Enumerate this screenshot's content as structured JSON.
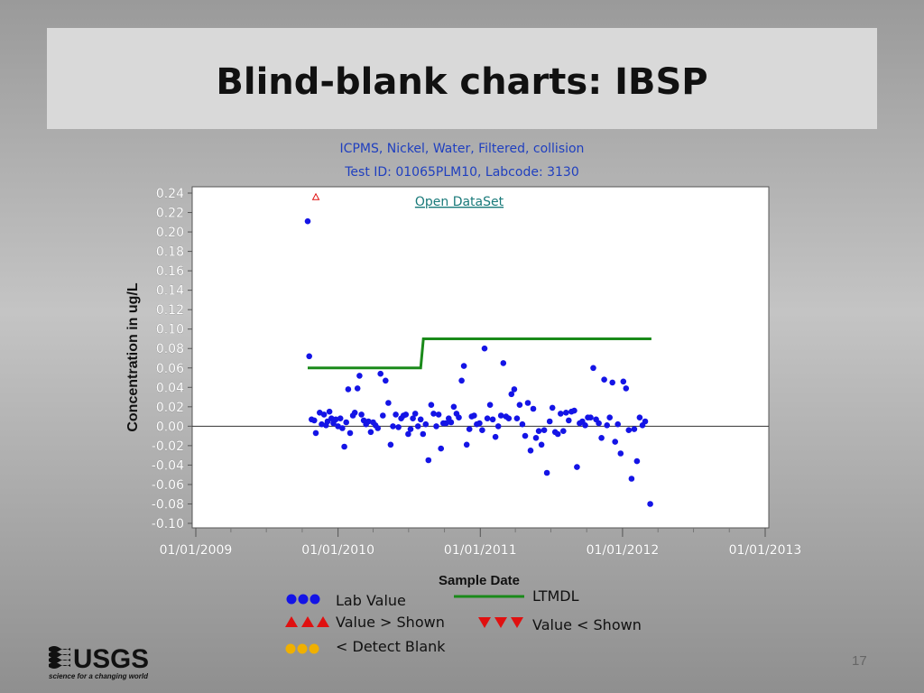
{
  "slide": {
    "title": "Blind-blank charts: IBSP",
    "page_number": "17"
  },
  "logo": {
    "text": "USGS",
    "tagline": "science for a changing world"
  },
  "chart_data": {
    "type": "scatter",
    "subtitle_lines": [
      "ICPMS, Nickel, Water, Filtered, collision",
      "Test ID: 01065PLM10, Labcode: 3130"
    ],
    "link_text": "Open DataSet",
    "xlabel": "Sample Date",
    "ylabel": "Concentration in ug/L",
    "ylim": [
      -0.1,
      0.24
    ],
    "yticks": [
      "0.24",
      "0.22",
      "0.20",
      "0.18",
      "0.16",
      "0.14",
      "0.12",
      "0.10",
      "0.08",
      "0.06",
      "0.04",
      "0.02",
      "0.00",
      "-0.02",
      "-0.04",
      "-0.06",
      "-0.08",
      "-0.10"
    ],
    "xlim": [
      "2009-01-01",
      "2013-01-01"
    ],
    "xticks": [
      "01/01/2009",
      "01/01/2010",
      "01/01/2011",
      "01/01/2012",
      "01/01/2013"
    ],
    "colors": {
      "lab_value": "#1414e6",
      "ltmdl": "#1a8a1a",
      "value_above": "#e01010",
      "value_below": "#e01010",
      "detect_blank": "#f0b000"
    },
    "series": [
      {
        "name": "Lab Value",
        "points": [
          [
            "2009-10-15",
            0.211
          ],
          [
            "2009-10-19",
            0.072
          ],
          [
            "2009-10-25",
            0.007
          ],
          [
            "2009-11-01",
            0.006
          ],
          [
            "2009-11-05",
            -0.007
          ],
          [
            "2009-11-15",
            0.014
          ],
          [
            "2009-11-20",
            0.002
          ],
          [
            "2009-11-26",
            0.012
          ],
          [
            "2009-12-01",
            0.001
          ],
          [
            "2009-12-05",
            0.005
          ],
          [
            "2009-12-10",
            0.015
          ],
          [
            "2009-12-15",
            0.008
          ],
          [
            "2009-12-20",
            0.003
          ],
          [
            "2009-12-26",
            0.007
          ],
          [
            "2010-01-01",
            0.0
          ],
          [
            "2010-01-07",
            0.008
          ],
          [
            "2010-01-12",
            -0.002
          ],
          [
            "2010-01-17",
            -0.021
          ],
          [
            "2010-01-22",
            0.004
          ],
          [
            "2010-01-27",
            0.038
          ],
          [
            "2010-02-01",
            -0.007
          ],
          [
            "2010-02-08",
            0.011
          ],
          [
            "2010-02-13",
            0.014
          ],
          [
            "2010-02-20",
            0.039
          ],
          [
            "2010-02-25",
            0.052
          ],
          [
            "2010-03-02",
            0.012
          ],
          [
            "2010-03-08",
            0.006
          ],
          [
            "2010-03-14",
            0.002
          ],
          [
            "2010-03-20",
            0.005
          ],
          [
            "2010-03-26",
            -0.006
          ],
          [
            "2010-04-01",
            0.004
          ],
          [
            "2010-04-07",
            0.001
          ],
          [
            "2010-04-13",
            -0.002
          ],
          [
            "2010-04-20",
            0.054
          ],
          [
            "2010-04-26",
            0.011
          ],
          [
            "2010-05-03",
            0.047
          ],
          [
            "2010-05-10",
            0.024
          ],
          [
            "2010-05-16",
            -0.019
          ],
          [
            "2010-05-22",
            0.0
          ],
          [
            "2010-05-29",
            0.012
          ],
          [
            "2010-06-05",
            -0.001
          ],
          [
            "2010-06-12",
            0.008
          ],
          [
            "2010-06-18",
            0.011
          ],
          [
            "2010-06-24",
            0.012
          ],
          [
            "2010-06-30",
            -0.008
          ],
          [
            "2010-07-06",
            -0.003
          ],
          [
            "2010-07-12",
            0.008
          ],
          [
            "2010-07-18",
            0.013
          ],
          [
            "2010-07-25",
            0.0
          ],
          [
            "2010-08-01",
            0.007
          ],
          [
            "2010-08-07",
            -0.008
          ],
          [
            "2010-08-14",
            0.002
          ],
          [
            "2010-08-21",
            -0.035
          ],
          [
            "2010-08-28",
            0.022
          ],
          [
            "2010-09-03",
            0.013
          ],
          [
            "2010-09-10",
            0.0
          ],
          [
            "2010-09-16",
            0.012
          ],
          [
            "2010-09-22",
            -0.023
          ],
          [
            "2010-09-28",
            0.003
          ],
          [
            "2010-10-05",
            0.003
          ],
          [
            "2010-10-12",
            0.008
          ],
          [
            "2010-10-18",
            0.004
          ],
          [
            "2010-10-25",
            0.02
          ],
          [
            "2010-11-01",
            0.013
          ],
          [
            "2010-11-07",
            0.009
          ],
          [
            "2010-11-14",
            0.047
          ],
          [
            "2010-11-20",
            0.062
          ],
          [
            "2010-11-27",
            -0.019
          ],
          [
            "2010-12-04",
            -0.003
          ],
          [
            "2010-12-10",
            0.01
          ],
          [
            "2010-12-16",
            0.011
          ],
          [
            "2010-12-23",
            0.002
          ],
          [
            "2010-12-30",
            0.003
          ],
          [
            "2011-01-06",
            -0.004
          ],
          [
            "2011-01-12",
            0.08
          ],
          [
            "2011-01-19",
            0.008
          ],
          [
            "2011-01-26",
            0.022
          ],
          [
            "2011-02-02",
            0.007
          ],
          [
            "2011-02-09",
            -0.011
          ],
          [
            "2011-02-16",
            0.0
          ],
          [
            "2011-02-23",
            0.011
          ],
          [
            "2011-03-01",
            0.065
          ],
          [
            "2011-03-08",
            0.01
          ],
          [
            "2011-03-15",
            0.008
          ],
          [
            "2011-03-22",
            0.033
          ],
          [
            "2011-03-29",
            0.038
          ],
          [
            "2011-04-05",
            0.008
          ],
          [
            "2011-04-12",
            0.022
          ],
          [
            "2011-04-19",
            0.002
          ],
          [
            "2011-04-26",
            -0.01
          ],
          [
            "2011-05-03",
            0.024
          ],
          [
            "2011-05-10",
            -0.025
          ],
          [
            "2011-05-17",
            0.018
          ],
          [
            "2011-05-24",
            -0.012
          ],
          [
            "2011-05-31",
            -0.005
          ],
          [
            "2011-06-07",
            -0.019
          ],
          [
            "2011-06-14",
            -0.004
          ],
          [
            "2011-06-21",
            -0.048
          ],
          [
            "2011-06-28",
            0.005
          ],
          [
            "2011-07-05",
            0.019
          ],
          [
            "2011-07-12",
            -0.006
          ],
          [
            "2011-07-19",
            -0.008
          ],
          [
            "2011-07-26",
            0.013
          ],
          [
            "2011-08-02",
            -0.005
          ],
          [
            "2011-08-09",
            0.014
          ],
          [
            "2011-08-16",
            0.006
          ],
          [
            "2011-08-23",
            0.015
          ],
          [
            "2011-08-30",
            0.016
          ],
          [
            "2011-09-06",
            -0.042
          ],
          [
            "2011-09-13",
            0.003
          ],
          [
            "2011-09-20",
            0.005
          ],
          [
            "2011-09-27",
            0.001
          ],
          [
            "2011-10-04",
            0.009
          ],
          [
            "2011-10-11",
            0.009
          ],
          [
            "2011-10-18",
            0.06
          ],
          [
            "2011-10-25",
            0.007
          ],
          [
            "2011-11-01",
            0.003
          ],
          [
            "2011-11-08",
            -0.012
          ],
          [
            "2011-11-15",
            0.048
          ],
          [
            "2011-11-22",
            0.001
          ],
          [
            "2011-11-29",
            0.009
          ],
          [
            "2011-12-06",
            0.045
          ],
          [
            "2011-12-13",
            -0.016
          ],
          [
            "2011-12-20",
            0.002
          ],
          [
            "2011-12-27",
            -0.028
          ],
          [
            "2012-01-03",
            0.046
          ],
          [
            "2012-01-10",
            0.039
          ],
          [
            "2012-01-17",
            -0.004
          ],
          [
            "2012-01-24",
            -0.054
          ],
          [
            "2012-01-31",
            -0.003
          ],
          [
            "2012-02-07",
            -0.036
          ],
          [
            "2012-02-14",
            0.009
          ],
          [
            "2012-02-21",
            0.001
          ],
          [
            "2012-02-28",
            0.005
          ],
          [
            "2012-03-12",
            -0.08
          ]
        ]
      },
      {
        "name": "LTMDL",
        "type": "step",
        "points": [
          [
            "2009-10-15",
            0.06
          ],
          [
            "2010-08-01",
            0.06
          ],
          [
            "2010-08-08",
            0.09
          ],
          [
            "2012-03-15",
            0.09
          ]
        ]
      },
      {
        "name": "Value > Shown",
        "points": [
          [
            "2009-11-05",
            0.236
          ]
        ]
      }
    ],
    "legend": {
      "position": "bottom",
      "entries": [
        {
          "label": "Lab Value",
          "symbol": "dot",
          "color": "#1414e6"
        },
        {
          "label": "LTMDL",
          "symbol": "line",
          "color": "#1a8a1a"
        },
        {
          "label": "Value > Shown",
          "symbol": "triangle-up",
          "color": "#e01010"
        },
        {
          "label": "Value < Shown",
          "symbol": "triangle-down",
          "color": "#e01010"
        },
        {
          "label": "< Detect Blank",
          "symbol": "dot",
          "color": "#f0b000"
        }
      ]
    }
  }
}
